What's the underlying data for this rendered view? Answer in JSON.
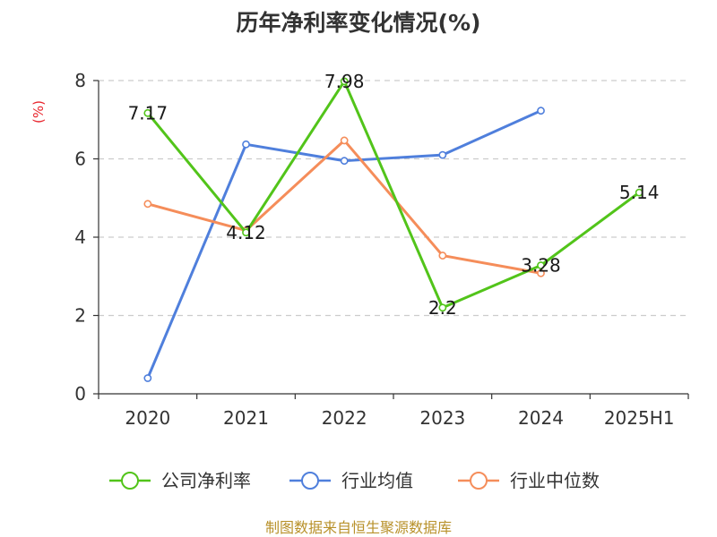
{
  "chart_data": {
    "type": "line",
    "title": "历年净利率变化情况(%)",
    "ylabel": "(%)",
    "xlabel": "",
    "categories": [
      "2020",
      "2021",
      "2022",
      "2023",
      "2024",
      "2025H1"
    ],
    "ylim": [
      0,
      8
    ],
    "yticks": [
      "0",
      "2",
      "4",
      "6",
      "8"
    ],
    "grid": true,
    "legend_position": "bottom",
    "series": [
      {
        "name": "公司净利率",
        "color": "#52c41a",
        "values": [
          7.17,
          4.12,
          7.98,
          2.2,
          3.28,
          5.14
        ],
        "labels": [
          "7.17",
          "4.12",
          "7.98",
          "2.2",
          "3.28",
          "5.14"
        ]
      },
      {
        "name": "行业均值",
        "color": "#4f7fdc",
        "values": [
          0.4,
          6.37,
          5.95,
          6.1,
          7.23,
          null
        ]
      },
      {
        "name": "行业中位数",
        "color": "#f58d5a",
        "values": [
          4.85,
          4.17,
          6.47,
          3.53,
          3.08,
          null
        ]
      }
    ]
  },
  "source_text": "制图数据来自恒生聚源数据库"
}
